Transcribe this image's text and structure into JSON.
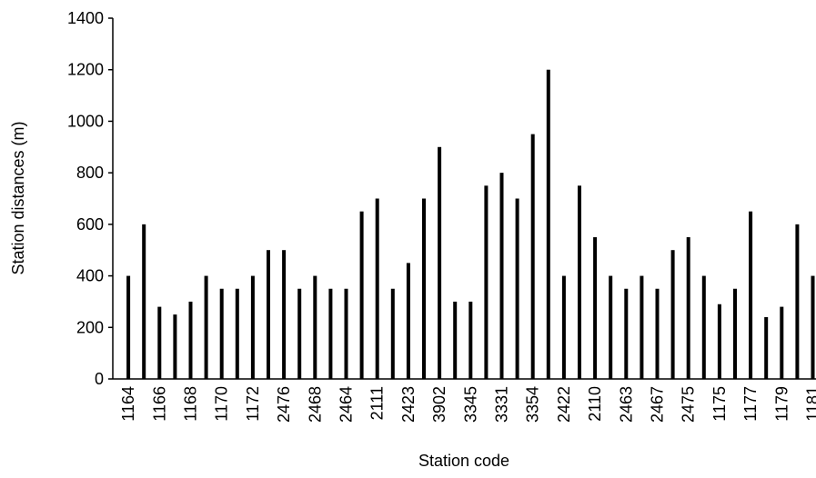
{
  "chart_data": {
    "type": "bar",
    "x_label": "Station code",
    "y_label": "Station distances (m)",
    "categories": [
      "1164",
      null,
      "1166",
      null,
      "1168",
      null,
      "1170",
      null,
      "1172",
      null,
      "2476",
      null,
      "2468",
      null,
      "2464",
      null,
      "2111",
      null,
      "2423",
      null,
      "3902",
      null,
      "3345",
      null,
      "3331",
      null,
      "3354",
      null,
      "2422",
      null,
      "2110",
      null,
      "2463",
      null,
      "2467",
      null,
      "2475",
      null,
      "1175",
      null,
      "1177",
      null,
      "1179",
      null,
      "1181"
    ],
    "values": [
      400,
      600,
      280,
      250,
      300,
      400,
      350,
      350,
      400,
      500,
      500,
      350,
      400,
      350,
      350,
      650,
      700,
      350,
      450,
      700,
      900,
      300,
      300,
      750,
      800,
      700,
      950,
      1200,
      400,
      750,
      550,
      400,
      350,
      400,
      350,
      500,
      550,
      400,
      290,
      350,
      650,
      240,
      280,
      600,
      400
    ],
    "color": "#000000",
    "ylim": [
      0,
      1400
    ],
    "yticks": [
      0,
      200,
      400,
      600,
      800,
      1000,
      1200,
      1400
    ],
    "grid": false
  }
}
